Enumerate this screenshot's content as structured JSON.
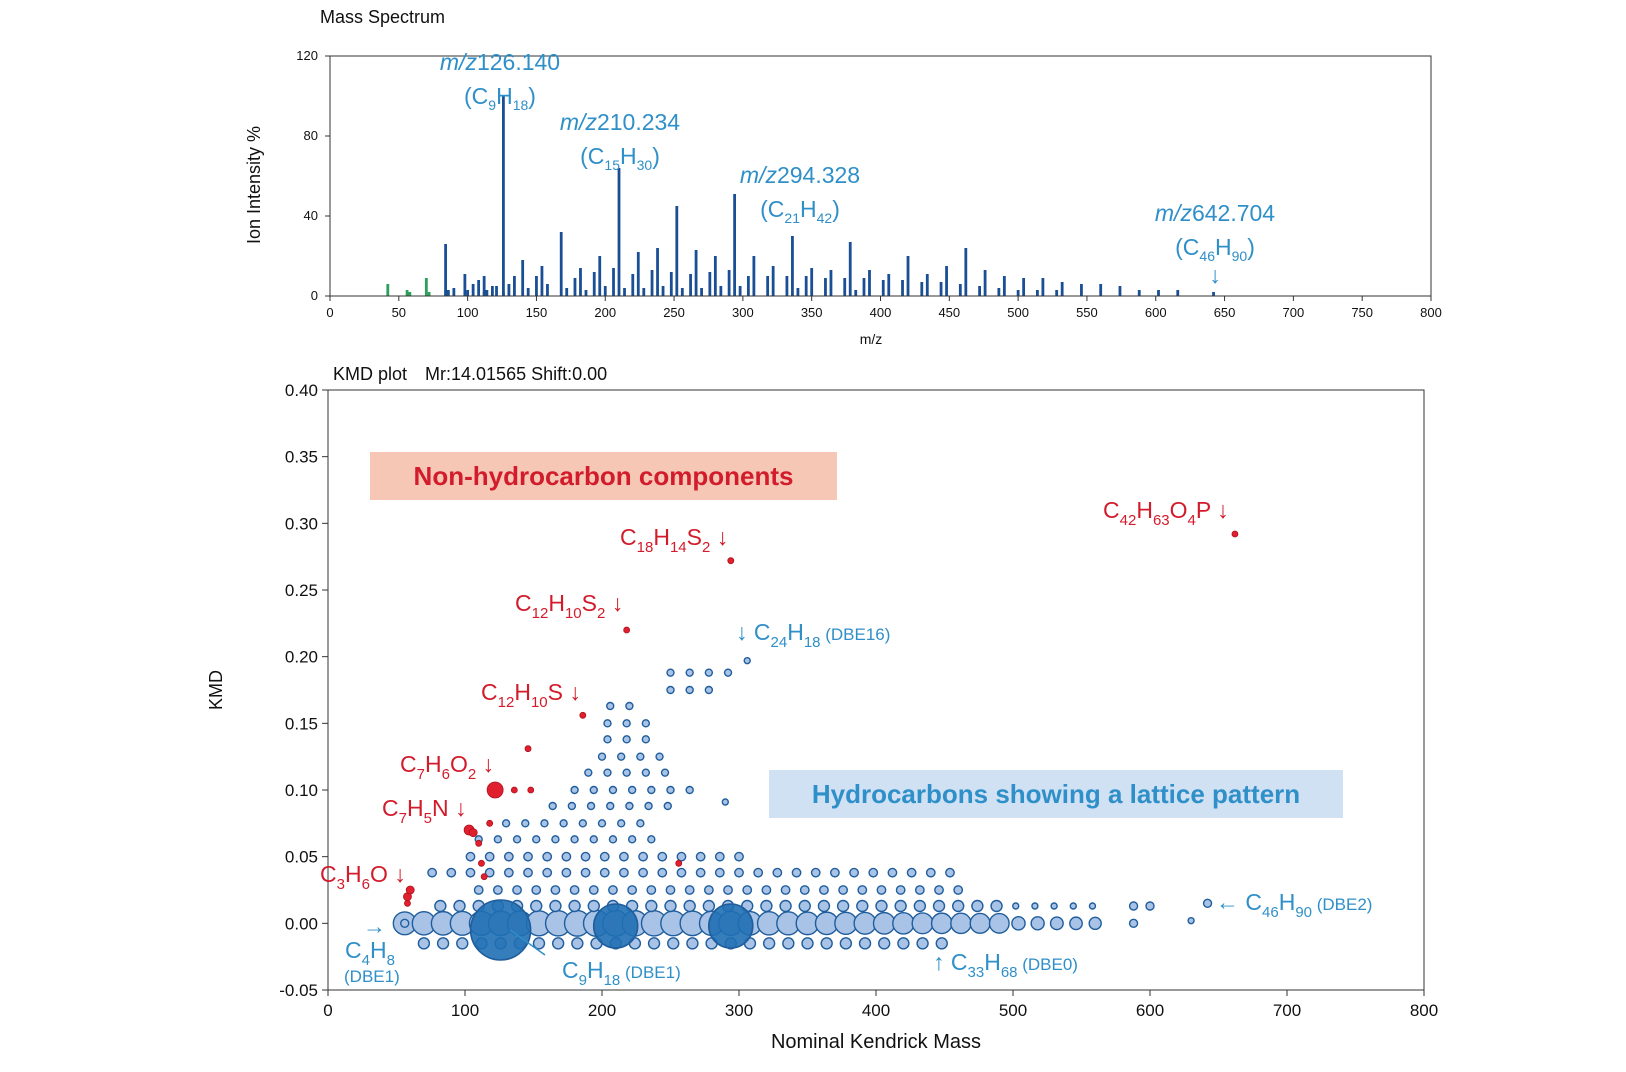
{
  "chart_data": [
    {
      "type": "bar",
      "title": "Mass Spectrum",
      "xlabel": "m/z",
      "ylabel": "Ion Intensity %",
      "xlim": [
        0,
        800
      ],
      "ylim": [
        0,
        120
      ],
      "xticks": [
        0,
        50,
        100,
        150,
        200,
        250,
        300,
        350,
        400,
        450,
        500,
        550,
        600,
        650,
        700,
        750,
        800
      ],
      "yticks": [
        0,
        40,
        80,
        120
      ],
      "series": [
        {
          "color": "#1a4f96",
          "peaks": [
            [
              84,
              26
            ],
            [
              86,
              3
            ],
            [
              90,
              4
            ],
            [
              98,
              11
            ],
            [
              100,
              3
            ],
            [
              104,
              6
            ],
            [
              108,
              8
            ],
            [
              112,
              10
            ],
            [
              114,
              3
            ],
            [
              118,
              5
            ],
            [
              121,
              5
            ],
            [
              126,
              100
            ],
            [
              130,
              6
            ],
            [
              134,
              10
            ],
            [
              140,
              18
            ],
            [
              144,
              4
            ],
            [
              150,
              10
            ],
            [
              154,
              15
            ],
            [
              158,
              6
            ],
            [
              168,
              32
            ],
            [
              172,
              4
            ],
            [
              178,
              9
            ],
            [
              182,
              14
            ],
            [
              186,
              3
            ],
            [
              192,
              12
            ],
            [
              196,
              20
            ],
            [
              200,
              5
            ],
            [
              206,
              14
            ],
            [
              210,
              64
            ],
            [
              214,
              4
            ],
            [
              220,
              11
            ],
            [
              224,
              22
            ],
            [
              228,
              4
            ],
            [
              234,
              13
            ],
            [
              238,
              24
            ],
            [
              242,
              5
            ],
            [
              248,
              12
            ],
            [
              252,
              45
            ],
            [
              256,
              4
            ],
            [
              262,
              11
            ],
            [
              266,
              23
            ],
            [
              270,
              4
            ],
            [
              276,
              12
            ],
            [
              280,
              20
            ],
            [
              284,
              5
            ],
            [
              290,
              13
            ],
            [
              294,
              51
            ],
            [
              298,
              5
            ],
            [
              304,
              10
            ],
            [
              308,
              20
            ],
            [
              318,
              10
            ],
            [
              322,
              15
            ],
            [
              332,
              10
            ],
            [
              336,
              30
            ],
            [
              340,
              4
            ],
            [
              346,
              10
            ],
            [
              350,
              14
            ],
            [
              360,
              9
            ],
            [
              364,
              13
            ],
            [
              374,
              9
            ],
            [
              378,
              27
            ],
            [
              382,
              3
            ],
            [
              388,
              9
            ],
            [
              392,
              13
            ],
            [
              402,
              8
            ],
            [
              406,
              11
            ],
            [
              416,
              8
            ],
            [
              420,
              20
            ],
            [
              430,
              7
            ],
            [
              434,
              11
            ],
            [
              444,
              7
            ],
            [
              448,
              15
            ],
            [
              458,
              6
            ],
            [
              462,
              24
            ],
            [
              472,
              5
            ],
            [
              476,
              13
            ],
            [
              486,
              4
            ],
            [
              490,
              10
            ],
            [
              500,
              3
            ],
            [
              504,
              9
            ],
            [
              514,
              3
            ],
            [
              518,
              9
            ],
            [
              528,
              3
            ],
            [
              532,
              7
            ],
            [
              546,
              6
            ],
            [
              560,
              6
            ],
            [
              574,
              5
            ],
            [
              588,
              3
            ],
            [
              602,
              3
            ],
            [
              616,
              3
            ],
            [
              642,
              2
            ]
          ]
        },
        {
          "color": "#2ca05a",
          "peaks": [
            [
              42,
              6
            ],
            [
              56,
              3
            ],
            [
              58,
              2
            ],
            [
              70,
              9
            ],
            [
              72,
              2
            ],
            [
              84,
              3
            ],
            [
              98,
              2
            ],
            [
              112,
              2
            ],
            [
              126,
              2
            ]
          ]
        }
      ],
      "annotations": [
        {
          "mz": "m/z",
          "value": "126.140",
          "formula": [
            "(C",
            "9",
            "H",
            "18",
            ")"
          ],
          "x": 126
        },
        {
          "mz": "m/z",
          "value": "210.234",
          "formula": [
            "(C",
            "15",
            "H",
            "30",
            ")"
          ],
          "x": 210
        },
        {
          "mz": "m/z",
          "value": "294.328",
          "formula": [
            "(C",
            "21",
            "H",
            "42",
            ")"
          ],
          "x": 294
        },
        {
          "mz": "m/z",
          "value": "642.704",
          "formula": [
            "(C",
            "46",
            "H",
            "90",
            ")"
          ],
          "x": 642,
          "arrow": "↓"
        }
      ]
    },
    {
      "type": "scatter",
      "title": "KMD plot　Mr:14.01565 Shift:0.00",
      "xlabel": "Nominal Kendrick Mass",
      "ylabel": "KMD",
      "xlim": [
        0,
        800
      ],
      "ylim": [
        -0.05,
        0.4
      ],
      "xticks": [
        0,
        100,
        200,
        300,
        400,
        500,
        600,
        700,
        800
      ],
      "yticks": [
        "0.40",
        "0.35",
        "0.30",
        "0.25",
        "0.20",
        "0.15",
        "0.10",
        "0.05",
        "0.00",
        "-0.05"
      ],
      "hydrocarbon_series": [
        {
          "kmd": -0.015,
          "xstart": 70,
          "xend": 460,
          "step": 14
        },
        {
          "kmd": 0.0,
          "xstart": 56,
          "xend": 560,
          "step": 14
        },
        {
          "kmd": 0.013,
          "xstart": 82,
          "xend": 560,
          "step": 14
        },
        {
          "kmd": 0.025,
          "xstart": 110,
          "xend": 460,
          "step": 14
        },
        {
          "kmd": 0.038,
          "xstart": 76,
          "xend": 458,
          "step": 14
        },
        {
          "kmd": 0.05,
          "xstart": 104,
          "xend": 300,
          "step": 14
        },
        {
          "kmd": 0.063,
          "xstart": 110,
          "xend": 248,
          "step": 14
        },
        {
          "kmd": 0.075,
          "xstart": 130,
          "xend": 240,
          "step": 14
        },
        {
          "kmd": 0.088,
          "xstart": 164,
          "xend": 260,
          "step": 14
        },
        {
          "kmd": 0.1,
          "xstart": 180,
          "xend": 266,
          "step": 14
        },
        {
          "kmd": 0.113,
          "xstart": 190,
          "xend": 258,
          "step": 14
        },
        {
          "kmd": 0.125,
          "xstart": 200,
          "xend": 244,
          "step": 14
        },
        {
          "kmd": 0.138,
          "xstart": 204,
          "xend": 232,
          "step": 14
        },
        {
          "kmd": 0.15,
          "xstart": 204,
          "xend": 232,
          "step": 14
        },
        {
          "kmd": 0.163,
          "xstart": 206,
          "xend": 232,
          "step": 14
        },
        {
          "kmd": 0.175,
          "xstart": 250,
          "xend": 280,
          "step": 14
        },
        {
          "kmd": 0.188,
          "xstart": 250,
          "xend": 295,
          "step": 14
        }
      ],
      "hydrocarbon_points": [
        {
          "x": 126,
          "kmd": -0.005,
          "r": 30,
          "highlight": true
        },
        {
          "x": 210,
          "kmd": -0.002,
          "r": 22,
          "highlight": true
        },
        {
          "x": 294,
          "kmd": -0.002,
          "r": 22,
          "highlight": true
        },
        {
          "x": 306,
          "kmd": 0.197,
          "r": 3
        },
        {
          "x": 290,
          "kmd": 0.091,
          "r": 3
        },
        {
          "x": 588,
          "kmd": 0.013,
          "r": 4
        },
        {
          "x": 600,
          "kmd": 0.013,
          "r": 4
        },
        {
          "x": 588,
          "kmd": 0.0,
          "r": 4
        },
        {
          "x": 630,
          "kmd": 0.002,
          "r": 3
        },
        {
          "x": 642,
          "kmd": 0.015,
          "r": 4
        },
        {
          "x": 56,
          "kmd": 0.0,
          "r": 4
        }
      ],
      "non_hydrocarbon_points": [
        {
          "x": 58,
          "kmd": 0.02,
          "r": 4
        },
        {
          "x": 60,
          "kmd": 0.025,
          "r": 4
        },
        {
          "x": 58,
          "kmd": 0.015,
          "r": 3
        },
        {
          "x": 103,
          "kmd": 0.07,
          "r": 5
        },
        {
          "x": 106,
          "kmd": 0.068,
          "r": 4
        },
        {
          "x": 110,
          "kmd": 0.06,
          "r": 3
        },
        {
          "x": 112,
          "kmd": 0.045,
          "r": 3
        },
        {
          "x": 118,
          "kmd": 0.075,
          "r": 3
        },
        {
          "x": 114,
          "kmd": 0.035,
          "r": 3
        },
        {
          "x": 122,
          "kmd": 0.1,
          "r": 8
        },
        {
          "x": 136,
          "kmd": 0.1,
          "r": 3
        },
        {
          "x": 148,
          "kmd": 0.1,
          "r": 3
        },
        {
          "x": 146,
          "kmd": 0.131,
          "r": 3
        },
        {
          "x": 186,
          "kmd": 0.156,
          "r": 3
        },
        {
          "x": 218,
          "kmd": 0.22,
          "r": 3
        },
        {
          "x": 294,
          "kmd": 0.272,
          "r": 3
        },
        {
          "x": 662,
          "kmd": 0.292,
          "r": 3
        },
        {
          "x": 256,
          "kmd": 0.045,
          "r": 3
        }
      ],
      "labels": {
        "non_hc_box": "Non-hydrocarbon components",
        "hc_box": "Hydrocarbons showing a lattice pattern",
        "c3h6o": {
          "parts": [
            "C",
            "3",
            "H",
            "6",
            "O"
          ],
          "arrow": "↓"
        },
        "c7h5n": {
          "parts": [
            "C",
            "7",
            "H",
            "5",
            "N"
          ],
          "arrow": "↓"
        },
        "c7h6o2": {
          "parts": [
            "C",
            "7",
            "H",
            "6",
            "O",
            "2"
          ],
          "arrow": "↓"
        },
        "c12h10s": {
          "parts": [
            "C",
            "12",
            "H",
            "10",
            "S"
          ],
          "arrow": "↓"
        },
        "c12h10s2": {
          "parts": [
            "C",
            "12",
            "H",
            "10",
            "S",
            "2"
          ],
          "arrow": "↓"
        },
        "c18h14s2": {
          "parts": [
            "C",
            "18",
            "H",
            "14",
            "S",
            "2"
          ],
          "arrow": "↓"
        },
        "c42h63o4p": {
          "parts": [
            "C",
            "42",
            "H",
            "63",
            "O",
            "4",
            "P"
          ],
          "arrow": "↓"
        },
        "c24h18": {
          "arrow": "↓",
          "parts": [
            "C",
            "24",
            "H",
            "18"
          ],
          "note": "(DBE16)"
        },
        "c46h90": {
          "arrow": "←",
          "parts": [
            "C",
            "46",
            "H",
            "90"
          ],
          "note": "(DBE2)"
        },
        "c33h68": {
          "arrow": "↑",
          "parts": [
            "C",
            "33",
            "H",
            "68"
          ],
          "note": "(DBE0)"
        },
        "c9h18": {
          "parts": [
            "C",
            "9",
            "H",
            "18"
          ],
          "note": "(DBE1)"
        },
        "c4h8": {
          "arrow": "→",
          "parts": [
            "C",
            "4",
            "H",
            "8"
          ],
          "note": "(DBE1)"
        }
      },
      "colors": {
        "hydrocarbon_fill": "#a9c3e6",
        "hydrocarbon_stroke": "#1f5d9c",
        "highlight_fill": "#1f6fb4",
        "non_hc": "#e0202e",
        "label_blue": "#2f8fc8",
        "label_red": "#d21b2b",
        "box_red_bg": "#f6c7b5",
        "box_blue_bg": "#cfe1f3"
      }
    }
  ]
}
